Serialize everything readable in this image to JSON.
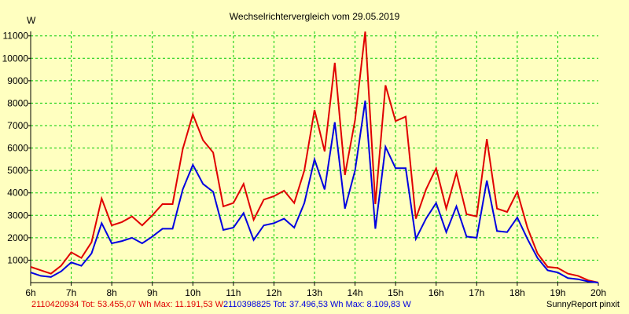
{
  "chart_data": {
    "type": "line",
    "title": "Wechselrichtervergleich vom 29.05.2019",
    "ylabel": "W",
    "xlabel": "",
    "x_range": [
      6,
      20
    ],
    "ylim": [
      0,
      11200
    ],
    "x_ticks": [
      "6h",
      "7h",
      "8h",
      "9h",
      "10h",
      "11h",
      "12h",
      "13h",
      "14h",
      "15h",
      "16h",
      "17h",
      "18h",
      "19h",
      "20h"
    ],
    "y_ticks": [
      1000,
      2000,
      3000,
      4000,
      5000,
      6000,
      7000,
      8000,
      9000,
      10000,
      11000
    ],
    "grid": true,
    "x": [
      6.0,
      6.25,
      6.5,
      6.75,
      7.0,
      7.25,
      7.5,
      7.75,
      8.0,
      8.25,
      8.5,
      8.75,
      9.0,
      9.25,
      9.5,
      9.75,
      10.0,
      10.25,
      10.5,
      10.75,
      11.0,
      11.25,
      11.5,
      11.75,
      12.0,
      12.25,
      12.5,
      12.75,
      13.0,
      13.25,
      13.5,
      13.75,
      14.0,
      14.25,
      14.5,
      14.75,
      15.0,
      15.25,
      15.5,
      15.75,
      16.0,
      16.25,
      16.5,
      16.75,
      17.0,
      17.25,
      17.5,
      17.75,
      18.0,
      18.25,
      18.5,
      18.75,
      19.0,
      19.25,
      19.5,
      19.75,
      20.0
    ],
    "series": [
      {
        "name": "2110420934",
        "color": "#e00000",
        "values": [
          700,
          550,
          400,
          750,
          1350,
          1100,
          1800,
          3750,
          2550,
          2700,
          2950,
          2550,
          3000,
          3500,
          3500,
          5950,
          7500,
          6350,
          5800,
          3400,
          3550,
          4400,
          2800,
          3700,
          3850,
          4100,
          3550,
          5000,
          7700,
          5850,
          9800,
          4800,
          7250,
          11191,
          3500,
          8800,
          7200,
          7400,
          2850,
          4150,
          5100,
          3300,
          4900,
          3050,
          2950,
          6400,
          3300,
          3150,
          4050,
          2450,
          1300,
          700,
          650,
          400,
          300,
          100,
          0
        ]
      },
      {
        "name": "2110398825",
        "color": "#0000e0",
        "values": [
          450,
          300,
          250,
          500,
          900,
          750,
          1300,
          2650,
          1750,
          1850,
          2000,
          1750,
          2050,
          2400,
          2400,
          4150,
          5250,
          4400,
          4050,
          2350,
          2450,
          3100,
          1900,
          2550,
          2650,
          2850,
          2450,
          3550,
          5500,
          4150,
          7150,
          3300,
          5000,
          8110,
          2400,
          6050,
          5100,
          5100,
          1950,
          2850,
          3550,
          2250,
          3400,
          2050,
          2000,
          4550,
          2300,
          2250,
          2900,
          1950,
          1100,
          550,
          450,
          200,
          150,
          50,
          0
        ]
      }
    ],
    "footer_left": [
      {
        "text": "2110420934 Tot: 53.455,07 Wh Max: 11.191,53 W",
        "color": "#e00000"
      },
      {
        "text": "2110398825 Tot: 37.496,53 Wh Max: 8.109,83 W",
        "color": "#0000e0"
      }
    ],
    "footer_right": "SunnyReport pinxit"
  }
}
